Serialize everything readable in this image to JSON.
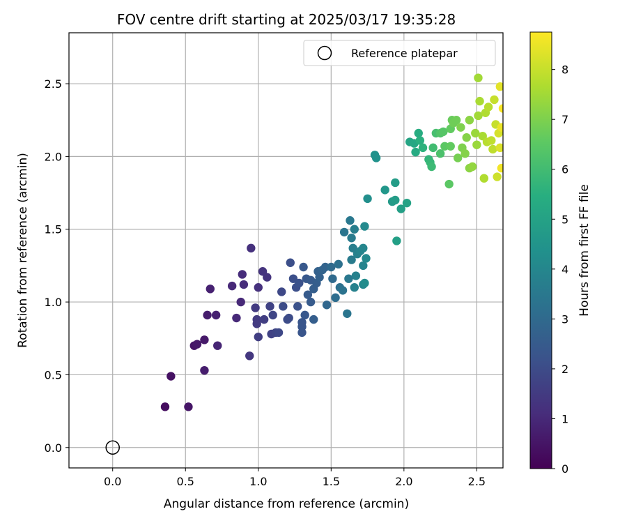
{
  "chart_data": {
    "type": "scatter",
    "title": "FOV centre drift starting at 2025/03/17 19:35:28",
    "xlabel": "Angular distance from reference (arcmin)",
    "ylabel": "Rotation from reference (arcmin)",
    "xlim": [
      -0.3,
      2.68
    ],
    "ylim": [
      -0.14,
      2.85
    ],
    "xticks": [
      0.0,
      0.5,
      1.0,
      1.5,
      2.0,
      2.5
    ],
    "yticks": [
      0.0,
      0.5,
      1.0,
      1.5,
      2.0,
      2.5
    ],
    "xtick_labels": [
      "0.0",
      "0.5",
      "1.0",
      "1.5",
      "2.0",
      "2.5"
    ],
    "ytick_labels": [
      "0.0",
      "0.5",
      "1.0",
      "1.5",
      "2.0",
      "2.5"
    ],
    "grid": true,
    "legend": {
      "position": "top-right",
      "entries": [
        "Reference platepar"
      ]
    },
    "reference_point": {
      "name": "Reference platepar",
      "x": 0.0,
      "y": 0.0,
      "marker": "open-circle",
      "color": "#000000"
    },
    "colorbar": {
      "label": "Hours from first FF file",
      "min": 0,
      "max": 8.75,
      "ticks": [
        0,
        1,
        2,
        3,
        4,
        5,
        6,
        7,
        8
      ],
      "tick_labels": [
        "0",
        "1",
        "2",
        "3",
        "4",
        "5",
        "6",
        "7",
        "8"
      ],
      "colormap": "viridis"
    },
    "points": [
      [
        0.36,
        0.28,
        0.3
      ],
      [
        0.4,
        0.49,
        0.4
      ],
      [
        0.52,
        0.28,
        0.5
      ],
      [
        0.56,
        0.7,
        0.5
      ],
      [
        0.58,
        0.71,
        0.6
      ],
      [
        0.63,
        0.74,
        0.6
      ],
      [
        0.63,
        0.53,
        0.7
      ],
      [
        0.65,
        0.91,
        0.7
      ],
      [
        0.67,
        1.09,
        0.8
      ],
      [
        0.71,
        0.91,
        0.8
      ],
      [
        0.72,
        0.7,
        0.9
      ],
      [
        0.82,
        1.11,
        1.0
      ],
      [
        0.85,
        0.89,
        1.0
      ],
      [
        0.88,
        1.0,
        1.0
      ],
      [
        0.89,
        1.19,
        1.1
      ],
      [
        0.9,
        1.12,
        1.1
      ],
      [
        0.95,
        1.37,
        1.2
      ],
      [
        1.0,
        1.1,
        1.2
      ],
      [
        1.03,
        1.21,
        1.3
      ],
      [
        1.06,
        1.17,
        1.3
      ],
      [
        0.94,
        0.63,
        1.4
      ],
      [
        0.98,
        0.96,
        1.5
      ],
      [
        0.99,
        0.88,
        1.5
      ],
      [
        0.99,
        0.85,
        1.5
      ],
      [
        1.0,
        0.76,
        1.6
      ],
      [
        1.04,
        0.88,
        1.6
      ],
      [
        1.08,
        0.97,
        1.7
      ],
      [
        1.09,
        0.78,
        1.7
      ],
      [
        1.1,
        0.91,
        1.8
      ],
      [
        1.12,
        0.79,
        1.8
      ],
      [
        1.14,
        0.79,
        1.9
      ],
      [
        1.16,
        1.07,
        1.9
      ],
      [
        1.17,
        0.97,
        2.0
      ],
      [
        1.2,
        0.88,
        2.0
      ],
      [
        1.21,
        0.89,
        2.0
      ],
      [
        1.22,
        1.27,
        2.1
      ],
      [
        1.24,
        1.16,
        2.1
      ],
      [
        1.26,
        1.1,
        2.1
      ],
      [
        1.27,
        0.97,
        2.2
      ],
      [
        1.28,
        1.13,
        2.2
      ],
      [
        1.3,
        0.79,
        2.3
      ],
      [
        1.3,
        0.83,
        2.3
      ],
      [
        1.3,
        0.86,
        2.3
      ],
      [
        1.31,
        1.24,
        2.4
      ],
      [
        1.32,
        0.91,
        2.4
      ],
      [
        1.33,
        1.16,
        2.4
      ],
      [
        1.34,
        1.05,
        2.5
      ],
      [
        1.36,
        1.15,
        2.5
      ],
      [
        1.36,
        1.0,
        2.5
      ],
      [
        1.38,
        0.88,
        2.6
      ],
      [
        1.38,
        1.09,
        2.6
      ],
      [
        1.4,
        1.13,
        2.6
      ],
      [
        1.41,
        1.21,
        2.7
      ],
      [
        1.42,
        1.17,
        2.7
      ],
      [
        1.44,
        1.22,
        2.8
      ],
      [
        1.46,
        1.24,
        2.8
      ],
      [
        1.47,
        0.98,
        2.9
      ],
      [
        1.5,
        1.24,
        3.0
      ],
      [
        1.51,
        1.16,
        3.0
      ],
      [
        1.53,
        1.03,
        3.1
      ],
      [
        1.55,
        1.26,
        3.2
      ],
      [
        1.56,
        1.1,
        3.2
      ],
      [
        1.58,
        1.08,
        3.3
      ],
      [
        1.59,
        1.48,
        3.4
      ],
      [
        1.61,
        0.92,
        3.4
      ],
      [
        1.62,
        1.16,
        3.5
      ],
      [
        1.63,
        1.56,
        3.5
      ],
      [
        1.64,
        1.44,
        3.6
      ],
      [
        1.64,
        1.29,
        3.6
      ],
      [
        1.65,
        1.37,
        3.7
      ],
      [
        1.66,
        1.5,
        3.7
      ],
      [
        1.66,
        1.1,
        3.8
      ],
      [
        1.67,
        1.18,
        3.8
      ],
      [
        1.68,
        1.33,
        3.8
      ],
      [
        1.7,
        1.35,
        3.9
      ],
      [
        1.72,
        1.25,
        3.9
      ],
      [
        1.72,
        1.37,
        4.0
      ],
      [
        1.72,
        1.12,
        4.0
      ],
      [
        1.73,
        1.52,
        4.1
      ],
      [
        1.74,
        1.3,
        4.1
      ],
      [
        1.73,
        1.13,
        4.2
      ],
      [
        1.75,
        1.71,
        4.3
      ],
      [
        1.8,
        2.01,
        4.4
      ],
      [
        1.81,
        1.99,
        4.4
      ],
      [
        1.87,
        1.77,
        4.6
      ],
      [
        1.92,
        1.69,
        4.7
      ],
      [
        1.94,
        1.82,
        4.8
      ],
      [
        1.94,
        1.7,
        4.8
      ],
      [
        1.95,
        1.42,
        4.9
      ],
      [
        1.98,
        1.64,
        4.9
      ],
      [
        2.02,
        1.68,
        5.0
      ],
      [
        2.04,
        2.1,
        5.1
      ],
      [
        2.07,
        2.09,
        5.2
      ],
      [
        2.08,
        2.03,
        5.3
      ],
      [
        2.1,
        2.16,
        5.4
      ],
      [
        2.11,
        2.11,
        5.5
      ],
      [
        2.13,
        2.06,
        5.6
      ],
      [
        2.17,
        1.98,
        5.7
      ],
      [
        2.18,
        1.96,
        5.8
      ],
      [
        2.19,
        1.93,
        5.9
      ],
      [
        2.2,
        2.06,
        6.0
      ],
      [
        2.22,
        2.16,
        6.1
      ],
      [
        2.25,
        2.02,
        6.2
      ],
      [
        2.25,
        2.16,
        6.3
      ],
      [
        2.27,
        2.17,
        6.4
      ],
      [
        2.28,
        2.07,
        6.5
      ],
      [
        2.31,
        1.81,
        6.5
      ],
      [
        2.32,
        2.07,
        6.6
      ],
      [
        2.32,
        2.19,
        6.6
      ],
      [
        2.33,
        2.25,
        6.7
      ],
      [
        2.34,
        2.23,
        6.8
      ],
      [
        2.36,
        2.25,
        6.8
      ],
      [
        2.37,
        1.99,
        6.9
      ],
      [
        2.39,
        2.2,
        7.0
      ],
      [
        2.4,
        2.06,
        7.0
      ],
      [
        2.42,
        2.02,
        7.1
      ],
      [
        2.43,
        2.13,
        7.1
      ],
      [
        2.45,
        2.25,
        7.2
      ],
      [
        2.45,
        1.92,
        7.2
      ],
      [
        2.47,
        1.93,
        7.3
      ],
      [
        2.49,
        2.16,
        7.4
      ],
      [
        2.5,
        2.08,
        7.4
      ],
      [
        2.51,
        2.54,
        7.5
      ],
      [
        2.51,
        2.28,
        7.5
      ],
      [
        2.52,
        2.38,
        7.6
      ],
      [
        2.54,
        2.14,
        7.6
      ],
      [
        2.55,
        1.85,
        7.7
      ],
      [
        2.56,
        2.3,
        7.7
      ],
      [
        2.57,
        2.1,
        7.8
      ],
      [
        2.58,
        2.34,
        7.8
      ],
      [
        2.6,
        2.11,
        7.9
      ],
      [
        2.61,
        2.05,
        7.9
      ],
      [
        2.62,
        2.39,
        8.0
      ],
      [
        2.63,
        2.22,
        8.0
      ],
      [
        2.64,
        1.86,
        8.1
      ],
      [
        2.65,
        2.16,
        8.2
      ],
      [
        2.66,
        2.06,
        8.3
      ],
      [
        2.66,
        2.48,
        8.4
      ],
      [
        2.67,
        2.2,
        8.5
      ],
      [
        2.67,
        1.92,
        8.6
      ],
      [
        2.68,
        2.33,
        8.7
      ]
    ]
  }
}
